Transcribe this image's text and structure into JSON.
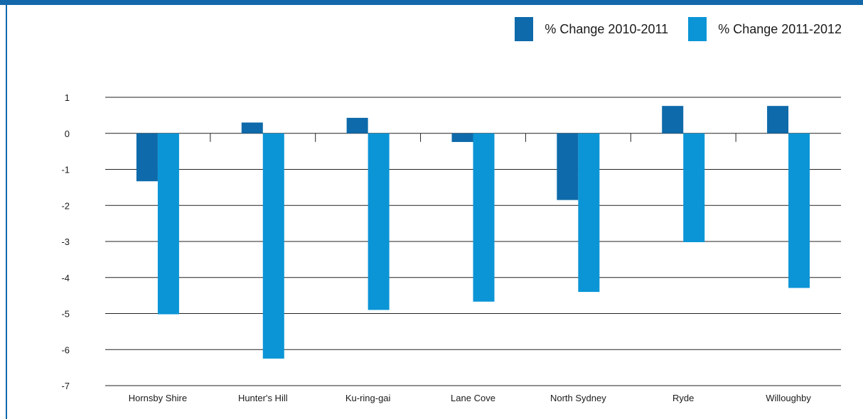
{
  "colors": {
    "frame": "#1268ab",
    "series_2010_2011": "#0e6aaa",
    "series_2011_2012": "#0b95d6",
    "grid": "#222222"
  },
  "chart_data": {
    "type": "bar",
    "categories": [
      "Hornsby Shire",
      "Hunter's Hill",
      "Ku-ring-gai",
      "Lane Cove",
      "North Sydney",
      "Ryde",
      "Willoughby"
    ],
    "series": [
      {
        "name": "% Change 2010-2011",
        "values": [
          -1.33,
          0.3,
          0.43,
          -0.24,
          -1.85,
          0.76,
          0.76
        ]
      },
      {
        "name": "% Change 2011-2012",
        "values": [
          -5.02,
          -6.25,
          -4.9,
          -4.67,
          -4.4,
          -3.02,
          -4.29
        ]
      }
    ],
    "ylim": [
      -7,
      1
    ],
    "yticks": [
      "1",
      "0",
      "-1",
      "-2",
      "-3",
      "-4",
      "-5",
      "-6",
      "-7"
    ],
    "grid": true,
    "legend_position": "top-right",
    "title": "",
    "xlabel": "",
    "ylabel": ""
  }
}
